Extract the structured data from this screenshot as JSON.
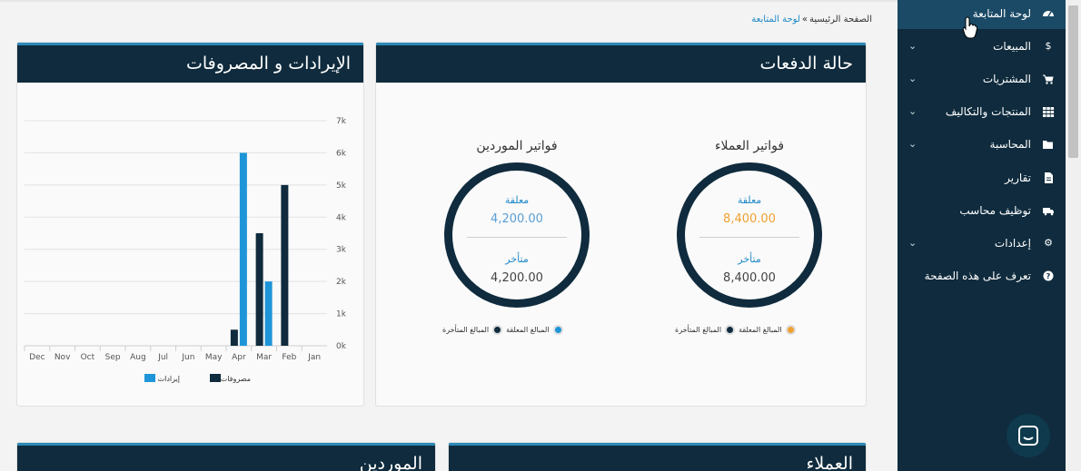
{
  "breadcrumb": {
    "home": "الصفحة الرئيسية",
    "sep": "»",
    "current": "لوحة المتابعة"
  },
  "payments": {
    "title": "حالة الدفعات",
    "customers": {
      "title": "فواتير العملاء",
      "closed_label": "معلقة",
      "closed_value": "8,400.00",
      "overdue_label": "متأخر",
      "overdue_value": "8,400.00",
      "legend_closed": "المبالغ المعلقة",
      "legend_overdue": "المبالغ المتأخرة"
    },
    "suppliers": {
      "title": "فواتير الموردين",
      "closed_label": "معلقة",
      "closed_value": "4,200.00",
      "overdue_label": "متأخر",
      "overdue_value": "4,200.00",
      "legend_closed": "المبالغ المعلقة",
      "legend_overdue": "المبالغ المتأخرة"
    }
  },
  "revexp": {
    "title": "الإيرادات و المصروفات"
  },
  "chart_data": {
    "type": "bar",
    "title": "الإيرادات و المصروفات",
    "categories": [
      "Jan",
      "Feb",
      "Mar",
      "Apr",
      "May",
      "Jun",
      "Jul",
      "Aug",
      "Sep",
      "Oct",
      "Nov",
      "Dec"
    ],
    "series": [
      {
        "name": "مصروفات",
        "color": "#0f2b3d",
        "values": [
          0,
          5000,
          3500,
          500,
          0,
          0,
          0,
          0,
          0,
          0,
          0,
          0
        ]
      },
      {
        "name": "إيرادات",
        "color": "#1d95d8",
        "values": [
          0,
          0,
          2000,
          6000,
          0,
          0,
          0,
          0,
          0,
          0,
          0,
          0
        ]
      }
    ],
    "yticks": [
      "0k",
      "1k",
      "2k",
      "3k",
      "4k",
      "5k",
      "6k",
      "7k"
    ],
    "ylim": [
      0,
      7000
    ],
    "grid": true,
    "legend": "bottom",
    "x_direction": "right-to-left"
  },
  "panels": {
    "customers_title": "العملاء",
    "suppliers_title": "الموردين"
  },
  "sidebar": {
    "items": [
      {
        "label": "لوحة المتابعة",
        "icon": "dashboard-icon",
        "caret": false,
        "active": true
      },
      {
        "label": "المبيعات",
        "icon": "dollar-icon",
        "caret": true
      },
      {
        "label": "المشتريات",
        "icon": "cart-icon",
        "caret": true
      },
      {
        "label": "المنتجات والتكاليف",
        "icon": "grid-icon",
        "caret": true
      },
      {
        "label": "المحاسبة",
        "icon": "folder-icon",
        "caret": true
      },
      {
        "label": "تقارير",
        "icon": "file-icon",
        "caret": false
      },
      {
        "label": "توظيف محاسب",
        "icon": "truck-icon",
        "caret": false
      },
      {
        "label": "إعدادات",
        "icon": "gear-icon",
        "caret": true
      },
      {
        "label": "تعرف على هذه الصفحة",
        "icon": "question-icon",
        "caret": false
      }
    ]
  },
  "colors": {
    "primary": "#0f2b3d",
    "accent": "#1d95d8",
    "orange": "#f0a030"
  }
}
